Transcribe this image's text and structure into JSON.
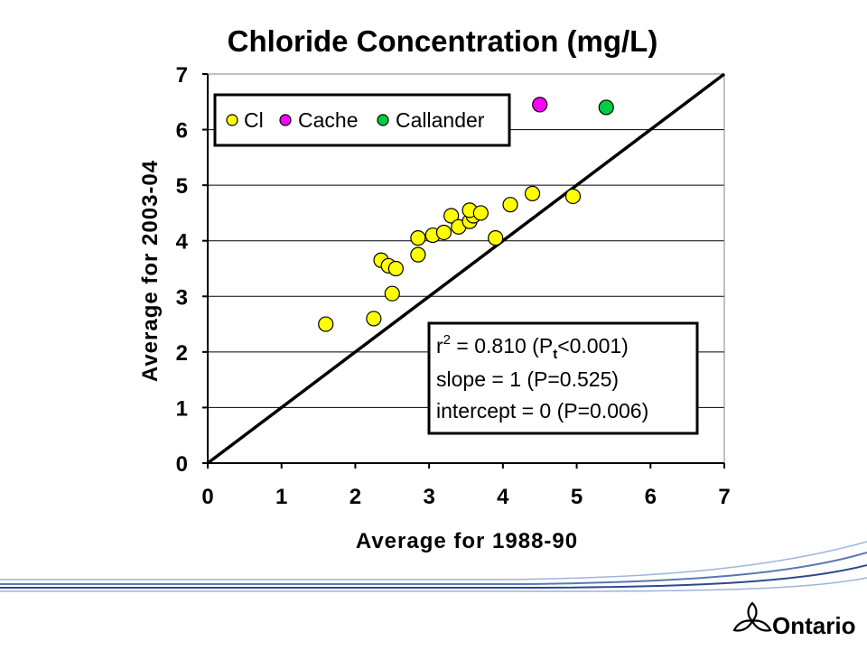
{
  "chart_data": {
    "type": "scatter",
    "title": "Chloride Concentration (mg/L)",
    "xlabel": "Average for 1988-90",
    "ylabel": "Average for 2003-04",
    "xlim": [
      0,
      7
    ],
    "ylim": [
      0,
      7
    ],
    "xticks": [
      "0",
      "1",
      "2",
      "3",
      "4",
      "5",
      "6",
      "7"
    ],
    "yticks": [
      "0",
      "1",
      "2",
      "3",
      "4",
      "5",
      "6",
      "7"
    ],
    "grid": "horizontal",
    "legend_position": "top-left",
    "reference_line": {
      "slope": 1,
      "intercept": 0
    },
    "series": [
      {
        "name": "Cl",
        "color": "#ffff00",
        "points": [
          {
            "x": 1.6,
            "y": 2.5
          },
          {
            "x": 2.25,
            "y": 2.6
          },
          {
            "x": 2.35,
            "y": 3.65
          },
          {
            "x": 2.45,
            "y": 3.55
          },
          {
            "x": 2.5,
            "y": 3.05
          },
          {
            "x": 2.55,
            "y": 3.5
          },
          {
            "x": 2.85,
            "y": 3.75
          },
          {
            "x": 2.85,
            "y": 4.05
          },
          {
            "x": 3.05,
            "y": 4.1
          },
          {
            "x": 3.2,
            "y": 4.15
          },
          {
            "x": 3.3,
            "y": 4.45
          },
          {
            "x": 3.4,
            "y": 4.25
          },
          {
            "x": 3.55,
            "y": 4.35
          },
          {
            "x": 3.6,
            "y": 4.45
          },
          {
            "x": 3.55,
            "y": 4.55
          },
          {
            "x": 3.7,
            "y": 4.5
          },
          {
            "x": 3.9,
            "y": 4.05
          },
          {
            "x": 4.1,
            "y": 4.65
          },
          {
            "x": 4.4,
            "y": 4.85
          },
          {
            "x": 4.95,
            "y": 4.8
          }
        ]
      },
      {
        "name": "Cache",
        "color": "#ff00ff",
        "points": [
          {
            "x": 4.5,
            "y": 6.45
          }
        ]
      },
      {
        "name": "Callander",
        "color": "#00cc44",
        "points": [
          {
            "x": 5.4,
            "y": 6.4
          }
        ]
      }
    ],
    "annotations": {
      "r2_prefix": "r",
      "r2_sup": "2",
      "r2_value": " = 0.810  (P",
      "r2_sub": "t",
      "r2_suffix": "<0.001)",
      "slope_line": "slope = 1 (P=0.525)",
      "intercept_line": "intercept = 0 (P=0.006)"
    }
  },
  "logo": {
    "text": "Ontario",
    "icon": "trillium-icon"
  }
}
